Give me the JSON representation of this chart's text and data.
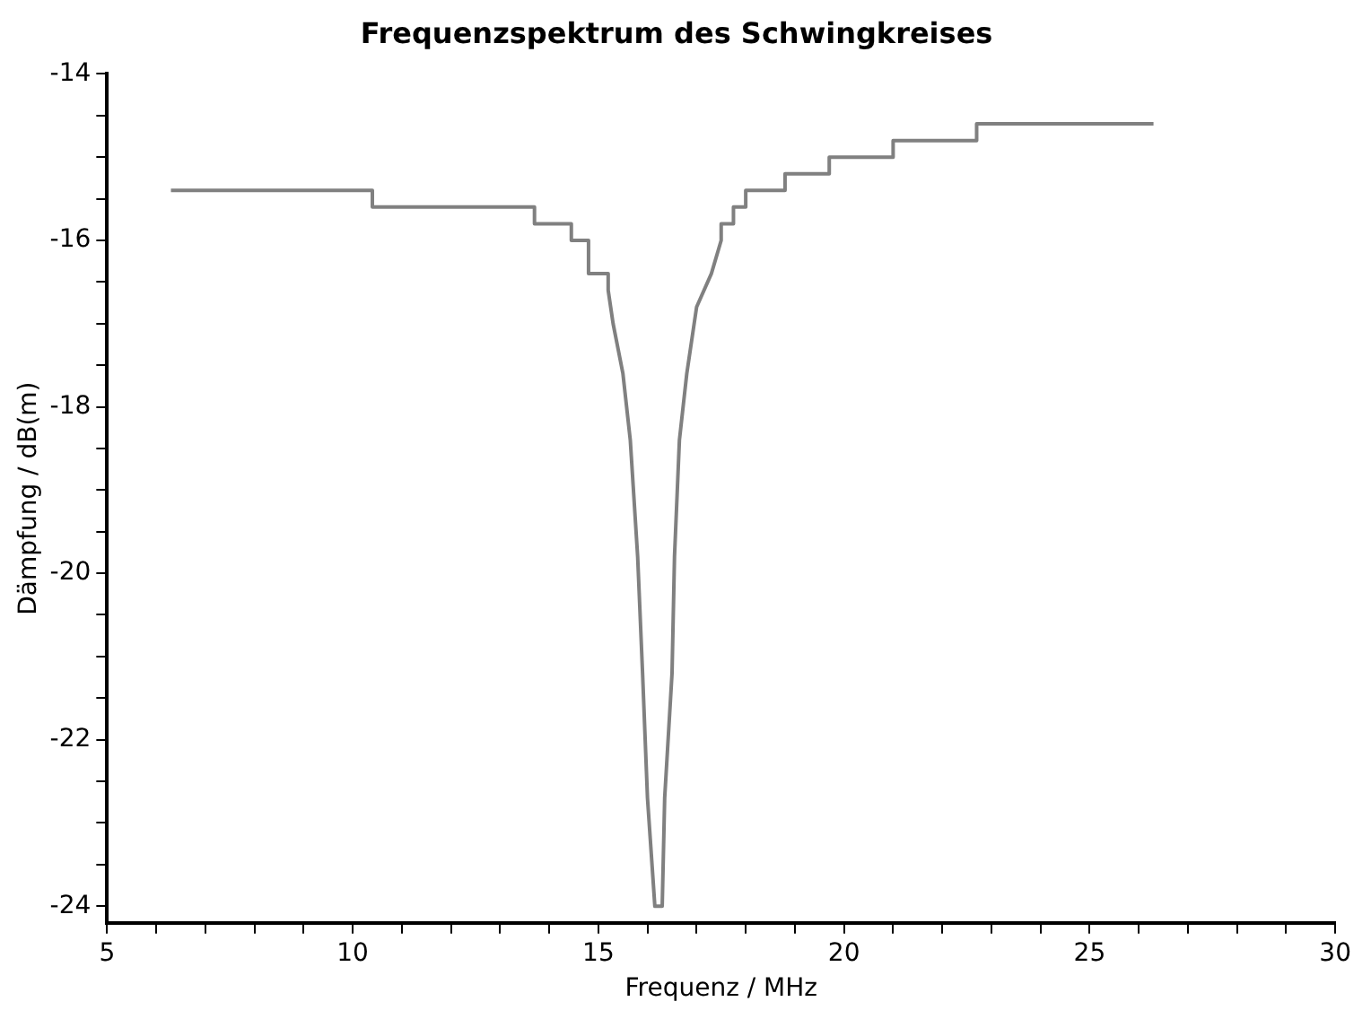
{
  "chart_data": {
    "type": "line",
    "title": "Frequenzspektrum des Schwingkreises",
    "xlabel": "Frequenz / MHz",
    "ylabel": "Dämpfung / dB(m)",
    "xlim": [
      5,
      30
    ],
    "ylim": [
      -24.2,
      -14
    ],
    "xticks": [
      5,
      {
        "value": 6,
        "label": null
      },
      {
        "value": 7,
        "label": null
      },
      {
        "value": 8,
        "label": null
      },
      {
        "value": 9,
        "label": null
      },
      10,
      {
        "value": 11,
        "label": null
      },
      {
        "value": 12,
        "label": null
      },
      {
        "value": 13,
        "label": null
      },
      {
        "value": 14,
        "label": null
      },
      15,
      {
        "value": 16,
        "label": null
      },
      {
        "value": 17,
        "label": null
      },
      {
        "value": 18,
        "label": null
      },
      {
        "value": 19,
        "label": null
      },
      20,
      {
        "value": 21,
        "label": null
      },
      {
        "value": 22,
        "label": null
      },
      {
        "value": 23,
        "label": null
      },
      {
        "value": 24,
        "label": null
      },
      25,
      {
        "value": 26,
        "label": null
      },
      {
        "value": 27,
        "label": null
      },
      {
        "value": 28,
        "label": null
      },
      {
        "value": 29,
        "label": null
      },
      30
    ],
    "yticks": [
      -14,
      {
        "value": -14.5,
        "label": null
      },
      {
        "value": -15,
        "label": null
      },
      {
        "value": -15.5,
        "label": null
      },
      -16,
      {
        "value": -16.5,
        "label": null
      },
      {
        "value": -17,
        "label": null
      },
      {
        "value": -17.5,
        "label": null
      },
      -18,
      {
        "value": -18.5,
        "label": null
      },
      {
        "value": -19,
        "label": null
      },
      {
        "value": -19.5,
        "label": null
      },
      -20,
      {
        "value": -20.5,
        "label": null
      },
      {
        "value": -21,
        "label": null
      },
      {
        "value": -21.5,
        "label": null
      },
      -22,
      {
        "value": -22.5,
        "label": null
      },
      {
        "value": -23,
        "label": null
      },
      {
        "value": -23.5,
        "label": null
      },
      -24
    ],
    "grid": false,
    "marker": "none",
    "line_style": "solid",
    "series": [
      {
        "color": "#808080",
        "x": [
          6.3,
          10.4,
          10.4,
          13.7,
          13.7,
          14.45,
          14.45,
          14.8,
          14.8,
          15.2,
          15.2,
          15.3,
          15.5,
          15.65,
          15.8,
          15.9,
          16.0,
          16.15,
          16.3,
          16.35,
          16.5,
          16.55,
          16.65,
          16.8,
          17.0,
          17.3,
          17.5,
          17.5,
          17.75,
          17.75,
          18.0,
          18.0,
          18.8,
          18.8,
          19.7,
          19.7,
          21.0,
          21.0,
          22.7,
          22.7,
          26.3
        ],
        "values": [
          -15.4,
          -15.4,
          -15.6,
          -15.6,
          -15.8,
          -15.8,
          -16.0,
          -16.0,
          -16.4,
          -16.4,
          -16.6,
          -17.0,
          -17.6,
          -18.4,
          -19.8,
          -21.2,
          -22.7,
          -24.0,
          -24.0,
          -22.7,
          -21.2,
          -19.8,
          -18.4,
          -17.6,
          -16.8,
          -16.4,
          -16.0,
          -15.8,
          -15.8,
          -15.6,
          -15.6,
          -15.4,
          -15.4,
          -15.2,
          -15.2,
          -15.0,
          -15.0,
          -14.8,
          -14.8,
          -14.6,
          -14.6
        ]
      }
    ]
  }
}
